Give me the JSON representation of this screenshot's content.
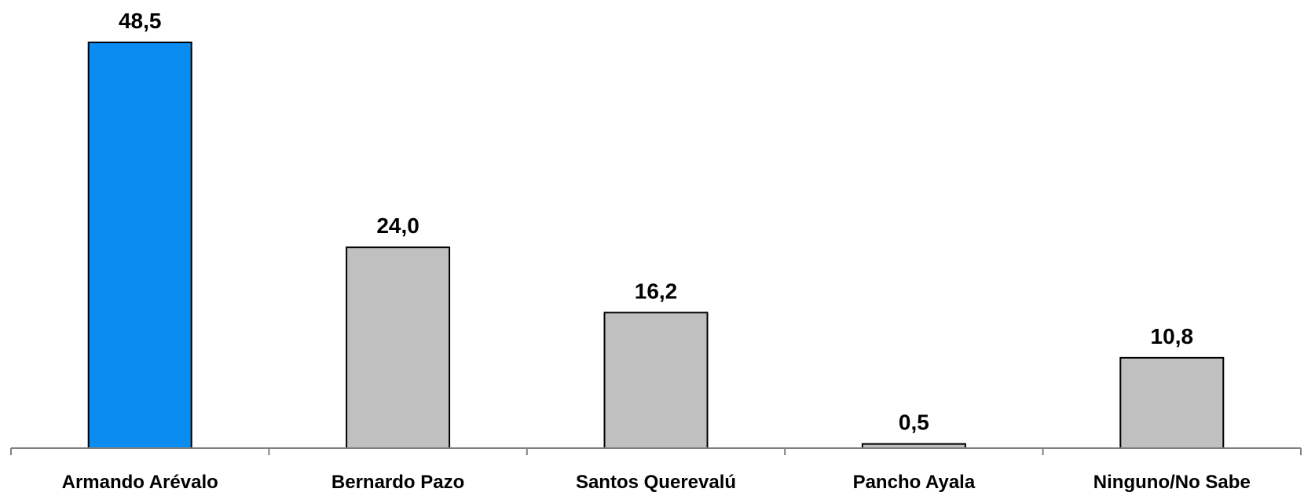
{
  "chart_data": {
    "type": "bar",
    "categories": [
      "Armando Arévalo",
      "Bernardo Pazo",
      "Santos Querevalú",
      "Pancho Ayala",
      "Ninguno/No Sabe"
    ],
    "values": [
      48.5,
      24.0,
      16.2,
      0.5,
      10.8
    ],
    "value_labels": [
      "48,5",
      "24,0",
      "16,2",
      "0,5",
      "10,8"
    ],
    "bar_colors": [
      "#0a8cf0",
      "#c0c0c0",
      "#c0c0c0",
      "#c0c0c0",
      "#c0c0c0"
    ],
    "ylim": [
      0,
      48.5
    ],
    "grid": false,
    "legend": "none"
  }
}
